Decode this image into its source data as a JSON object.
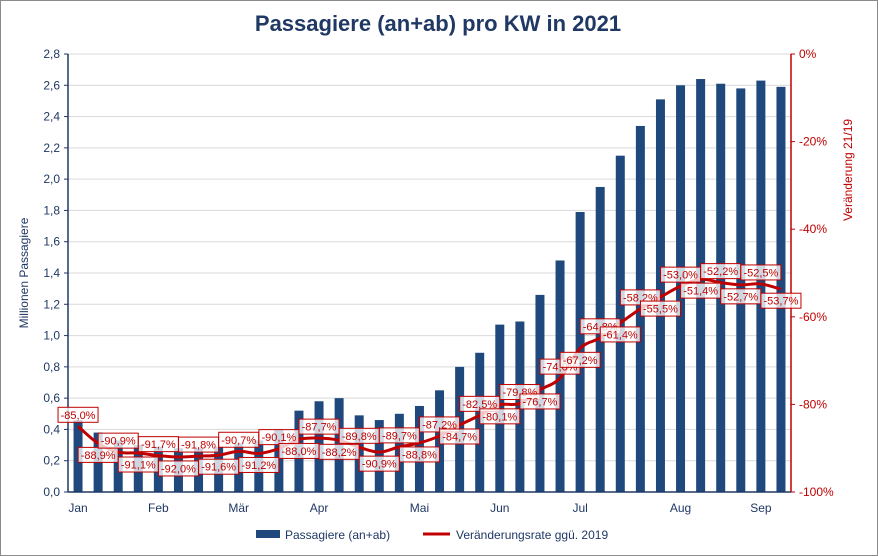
{
  "chart_data": {
    "type": "bar+line",
    "title": "Passagiere (an+ab) pro KW in 2021",
    "ylabel": "Millionen Passagiere",
    "y2label": "Veränderung 21/19",
    "ylim": [
      0,
      2.8
    ],
    "y2lim": [
      -100,
      0
    ],
    "yticks": [
      "0,0",
      "0,2",
      "0,4",
      "0,6",
      "0,8",
      "1,0",
      "1,2",
      "1,4",
      "1,6",
      "1,8",
      "2,0",
      "2,2",
      "2,4",
      "2,6",
      "2,8"
    ],
    "y2ticks": [
      "-100%",
      "-80%",
      "-60%",
      "-40%",
      "-20%",
      "0%"
    ],
    "month_labels": [
      {
        "label": "Jan",
        "week_index": 0
      },
      {
        "label": "Feb",
        "week_index": 4
      },
      {
        "label": "Mär",
        "week_index": 8
      },
      {
        "label": "Apr",
        "week_index": 12
      },
      {
        "label": "Mai",
        "week_index": 17
      },
      {
        "label": "Jun",
        "week_index": 21
      },
      {
        "label": "Jul",
        "week_index": 25
      },
      {
        "label": "Aug",
        "week_index": 30
      },
      {
        "label": "Sep",
        "week_index": 34
      }
    ],
    "grid": true,
    "legend_position": "bottom",
    "series": [
      {
        "name": "Passagiere (an+ab)",
        "type": "bar",
        "axis": "left",
        "color": "#1f497d",
        "values": [
          0.46,
          0.38,
          0.33,
          0.3,
          0.29,
          0.28,
          0.28,
          0.29,
          0.31,
          0.33,
          0.4,
          0.52,
          0.58,
          0.6,
          0.49,
          0.46,
          0.5,
          0.55,
          0.65,
          0.8,
          0.89,
          1.07,
          1.09,
          1.26,
          1.48,
          1.79,
          1.95,
          2.15,
          2.34,
          2.51,
          2.6,
          2.64,
          2.61,
          2.58,
          2.63,
          2.59
        ]
      },
      {
        "name": "Veränderungsrate ggü. 2019",
        "type": "line",
        "axis": "right",
        "color": "#c00000",
        "values": [
          -85.0,
          -88.9,
          -90.9,
          -91.1,
          -91.7,
          -92.0,
          -91.8,
          -91.6,
          -90.7,
          -91.2,
          -90.1,
          -88.0,
          -87.7,
          -88.2,
          -89.8,
          -90.9,
          -89.7,
          -88.8,
          -87.2,
          -84.7,
          -82.5,
          -80.1,
          -79.8,
          -76.7,
          -74.0,
          -67.2,
          -64.8,
          -61.4,
          -58.2,
          -55.5,
          -53.0,
          -51.4,
          -52.2,
          -52.7,
          -52.5,
          -53.7
        ],
        "labels": [
          "-85,0%",
          "-88,9%",
          "-90,9%",
          "-91,1%",
          "-91,7%",
          "-92,0%",
          "-91,8%",
          "-91,6%",
          "-90,7%",
          "-91,2%",
          "-90,1%",
          "-88,0%",
          "-87,7%",
          "-88,2%",
          "-89,8%",
          "-90,9%",
          "-89,7%",
          "-88,8%",
          "-87,2%",
          "-84,7%",
          "-82,5%",
          "-80,1%",
          "-79,8%",
          "-76,7%",
          "-74,0%",
          "-67,2%",
          "-64,8%",
          "-61,4%",
          "-58,2%",
          "-55,5%",
          "-53,0%",
          "-51,4%",
          "-52,2%",
          "-52,7%",
          "-52,5%",
          "-53,7%"
        ]
      }
    ]
  }
}
